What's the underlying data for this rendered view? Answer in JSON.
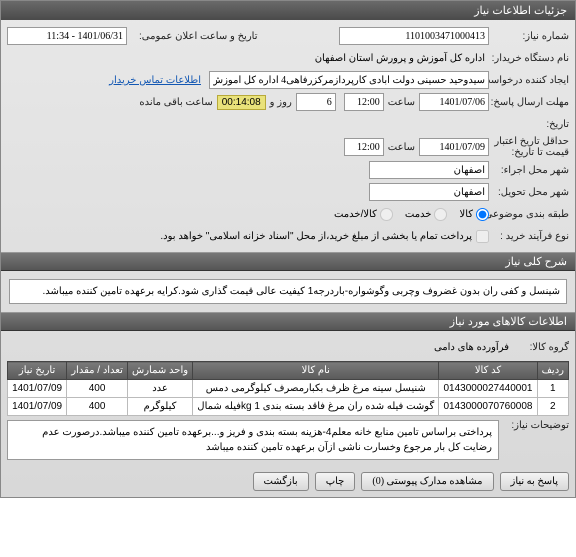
{
  "titlebar": "جزئیات اطلاعات نیاز",
  "fields": {
    "need_no_lbl": "شماره نیاز:",
    "need_no": "1101003471000413",
    "announce_lbl": "تاریخ و ساعت اعلان عمومی:",
    "announce": "1401/06/31 - 11:34",
    "buyer_lbl": "نام دستگاه خریدار:",
    "buyer": "اداره کل آموزش و پرورش استان اصفهان",
    "requester_lbl": "ایجاد کننده درخواست:",
    "requester": "سیدوحید حسینی دولت آبادی کارپردازمرکزرفاهی4 اداره کل آموزش و پرورش اس",
    "contact_link": "اطلاعات تماس خریدار",
    "deadline_send_lbl": "مهلت ارسال پاسخ:",
    "deadline_send_date": "1401/07/06",
    "sa_at": "ساعت",
    "deadline_send_time": "12:00",
    "days_val": "6",
    "days_lbl": "روز و",
    "countdown": "00:14:08",
    "remain_lbl": "ساعت باقی مانده",
    "until_lbl": "تاریخ:",
    "validity_lbl": "حداقل تاریخ اعتبار",
    "price_until_lbl": "قیمت تا تاریخ:",
    "validity_date": "1401/07/09",
    "validity_time": "12:00",
    "city_exec_lbl": "شهر محل اجراء:",
    "city_exec": "اصفهان",
    "city_deliv_lbl": "شهر محل تحویل:",
    "city_deliv": "اصفهان",
    "class_lbl": "طبقه بندی موضوعی:",
    "r_kala": "کالا",
    "r_khedmat": "خدمت",
    "r_both": "کالا/خدمت",
    "process_lbl": "نوع فرآیند خرید :",
    "process_chk": "پرداخت تمام یا بخشی از مبلغ خرید،از محل \"اسناد خزانه اسلامی\" خواهد بود.",
    "desc_hd": "شرح کلی نیاز",
    "desc_text": "شینسل  و کفی ران بدون غضروف وچربی وگوشواره-باردرجه1 کیفیت عالی قیمت گذاری شود.کرایه برعهده تامین کننده میباشد.",
    "items_hd": "اطلاعات کالاهای مورد نیاز",
    "group_lbl": "گروه کالا:",
    "group_val": "فرآورده های دامی",
    "notes_lbl": "توضیحات نیاز:",
    "notes_text": "پرداختی براساس تامین منابع خانه معلم4-هزینه بسته بندی و فریز و...برعهده تامین کننده میباشد.درصورت عدم رضایت کل بار مرجوع وخسارت ناشی ازآن برعهده تامین کننده میباشد"
  },
  "table": {
    "cols": [
      "ردیف",
      "کد کالا",
      "نام کالا",
      "واحد شمارش",
      "تعداد / مقدار",
      "تاریخ نیاز"
    ],
    "rows": [
      [
        "1",
        "0143000027440001",
        "شنیسل سینه مرغ ظرف بکبارمصرف کیلوگرمی دمس",
        "عدد",
        "400",
        "1401/07/09"
      ],
      [
        "2",
        "0143000070760008",
        "گوشت فیله شده ران مرغ فاقد بسته بندی 1 kgفیله شمال",
        "کیلوگرم",
        "400",
        "1401/07/09"
      ]
    ]
  },
  "buttons": {
    "reply": "پاسخ به نیاز",
    "attach": "مشاهده مدارک پیوستی (0)",
    "print": "چاپ",
    "back": "بازگشت"
  }
}
